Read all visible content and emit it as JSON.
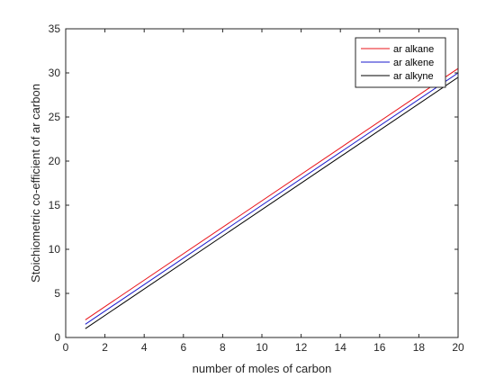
{
  "chart_data": {
    "type": "line",
    "title": "",
    "xlabel": "number of moles of carbon",
    "ylabel": "Stoichiometric co-efficient of ar carbon",
    "xlim": [
      0,
      20
    ],
    "ylim": [
      0,
      35
    ],
    "xticks": [
      0,
      2,
      4,
      6,
      8,
      10,
      12,
      14,
      16,
      18,
      20
    ],
    "yticks": [
      0,
      5,
      10,
      15,
      20,
      25,
      30,
      35
    ],
    "grid": false,
    "legend_position": "top-right",
    "series": [
      {
        "name": "ar alkane",
        "color": "#e8141a",
        "x": [
          1,
          20
        ],
        "y": [
          2.0,
          30.5
        ]
      },
      {
        "name": "ar alkene",
        "color": "#1a1acc",
        "x": [
          1,
          20
        ],
        "y": [
          1.5,
          30.0
        ]
      },
      {
        "name": "ar alkyne",
        "color": "#000000",
        "x": [
          1,
          20
        ],
        "y": [
          1.0,
          29.5
        ]
      }
    ]
  }
}
